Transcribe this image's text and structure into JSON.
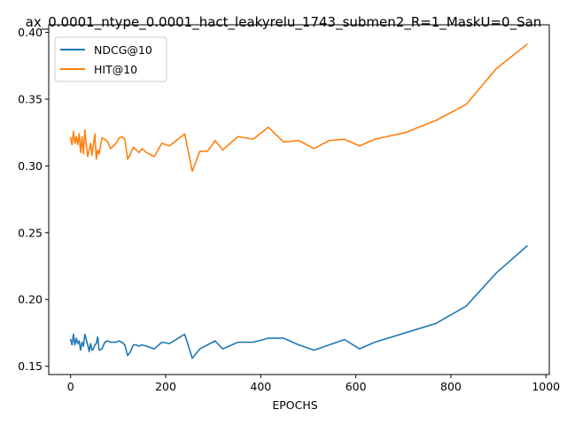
{
  "chart_data": {
    "type": "line",
    "title": "ax_0.0001_ntype_0.0001_hact_leakyrelu_1743_submen2_R=1_MaskU=0_San",
    "xlabel": "EPOCHS",
    "ylabel": "",
    "xlim": [
      -46,
      1007
    ],
    "ylim": [
      0.1438,
      0.4057
    ],
    "xticks": [
      0,
      200,
      400,
      600,
      800,
      1000
    ],
    "yticks": [
      0.15,
      0.2,
      0.25,
      0.3,
      0.35,
      0.4
    ],
    "xtick_labels": [
      "0",
      "200",
      "400",
      "600",
      "800",
      "1000"
    ],
    "ytick_labels": [
      "0.15",
      "0.20",
      "0.25",
      "0.30",
      "0.35",
      "0.40"
    ],
    "grid": false,
    "legend_position": "top-left",
    "series": [
      {
        "name": "NDCG@10",
        "color": "#1f77b4",
        "x": [
          0,
          3,
          6,
          9,
          12,
          15,
          18,
          21,
          24,
          27,
          30,
          33,
          36,
          39,
          42,
          45,
          48,
          51,
          54,
          57,
          60,
          66,
          72,
          78,
          84,
          90,
          96,
          102,
          108,
          114,
          120,
          126,
          132,
          138,
          144,
          150,
          160,
          176,
          192,
          208,
          240,
          256,
          272,
          288,
          304,
          320,
          352,
          384,
          416,
          448,
          480,
          512,
          544,
          576,
          608,
          640,
          704,
          768,
          832,
          896,
          960
        ],
        "y": [
          0.17,
          0.166,
          0.174,
          0.166,
          0.171,
          0.167,
          0.169,
          0.162,
          0.168,
          0.165,
          0.174,
          0.17,
          0.166,
          0.161,
          0.167,
          0.162,
          0.163,
          0.166,
          0.167,
          0.172,
          0.162,
          0.163,
          0.168,
          0.169,
          0.168,
          0.168,
          0.168,
          0.169,
          0.168,
          0.166,
          0.158,
          0.161,
          0.166,
          0.166,
          0.165,
          0.166,
          0.165,
          0.163,
          0.168,
          0.167,
          0.174,
          0.156,
          0.163,
          0.166,
          0.169,
          0.163,
          0.168,
          0.168,
          0.171,
          0.171,
          0.166,
          0.162,
          0.166,
          0.17,
          0.163,
          0.168,
          0.175,
          0.182,
          0.195,
          0.22,
          0.24
        ]
      },
      {
        "name": "HIT@10",
        "color": "#ff7f0e",
        "x": [
          0,
          3,
          6,
          9,
          12,
          15,
          18,
          21,
          24,
          27,
          30,
          33,
          36,
          39,
          42,
          45,
          48,
          51,
          54,
          57,
          60,
          66,
          72,
          78,
          84,
          90,
          96,
          102,
          108,
          114,
          120,
          126,
          132,
          138,
          144,
          150,
          160,
          176,
          192,
          208,
          240,
          256,
          272,
          288,
          304,
          320,
          352,
          384,
          416,
          448,
          480,
          512,
          544,
          576,
          608,
          640,
          704,
          768,
          832,
          896,
          960
        ],
        "y": [
          0.321,
          0.316,
          0.326,
          0.317,
          0.322,
          0.316,
          0.324,
          0.31,
          0.322,
          0.309,
          0.327,
          0.316,
          0.307,
          0.312,
          0.317,
          0.308,
          0.316,
          0.324,
          0.305,
          0.312,
          0.309,
          0.321,
          0.32,
          0.318,
          0.313,
          0.315,
          0.317,
          0.321,
          0.322,
          0.32,
          0.305,
          0.309,
          0.314,
          0.312,
          0.31,
          0.313,
          0.31,
          0.307,
          0.317,
          0.315,
          0.324,
          0.296,
          0.311,
          0.311,
          0.319,
          0.312,
          0.322,
          0.32,
          0.329,
          0.318,
          0.319,
          0.313,
          0.319,
          0.32,
          0.315,
          0.32,
          0.325,
          0.334,
          0.346,
          0.373,
          0.391
        ]
      }
    ]
  }
}
